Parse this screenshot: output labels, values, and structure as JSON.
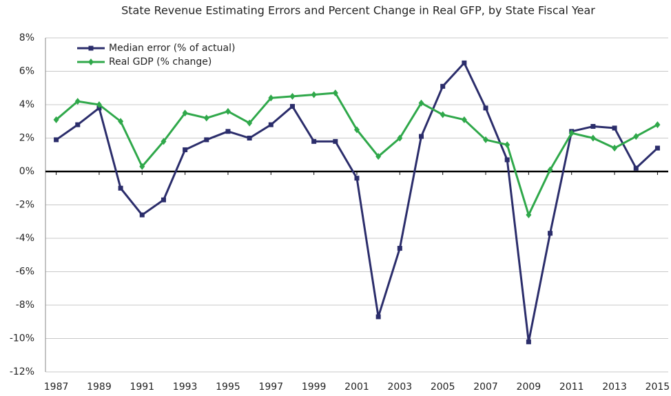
{
  "chart_data": {
    "type": "line",
    "title": "State Revenue Estimating Errors and Percent Change in Real GFP, by State Fiscal Year",
    "x": [
      1987,
      1988,
      1989,
      1990,
      1991,
      1992,
      1993,
      1994,
      1995,
      1996,
      1997,
      1998,
      1999,
      2000,
      2001,
      2002,
      2003,
      2004,
      2005,
      2006,
      2007,
      2008,
      2009,
      2010,
      2011,
      2012,
      2013,
      2014,
      2015
    ],
    "series": [
      {
        "name": "Median error (% of actual)",
        "color": "#2b2d6b",
        "marker": "square",
        "values": [
          1.9,
          2.8,
          3.8,
          -1.0,
          -2.6,
          -1.7,
          1.3,
          1.9,
          2.4,
          2.0,
          2.8,
          3.9,
          1.8,
          1.8,
          -0.4,
          -8.7,
          -4.6,
          2.1,
          5.1,
          6.5,
          3.8,
          0.7,
          -10.2,
          -3.7,
          2.4,
          2.7,
          2.6,
          0.2,
          1.4
        ]
      },
      {
        "name": "Real GDP (% change)",
        "color": "#2fa84a",
        "marker": "diamond",
        "values": [
          3.1,
          4.2,
          4.0,
          3.0,
          0.3,
          1.8,
          3.5,
          3.2,
          3.6,
          2.9,
          4.4,
          4.5,
          4.6,
          4.7,
          2.5,
          0.9,
          2.0,
          4.1,
          3.4,
          3.1,
          1.9,
          1.6,
          -2.6,
          0.1,
          2.3,
          2.0,
          1.4,
          2.1,
          2.8
        ]
      }
    ],
    "xlim": [
      1986.5,
      2015.5
    ],
    "xticks": [
      1987,
      1989,
      1991,
      1993,
      1995,
      1997,
      1999,
      2001,
      2003,
      2005,
      2007,
      2009,
      2011,
      2013,
      2015
    ],
    "ylim": [
      -12,
      8
    ],
    "yticks": [
      {
        "value": -12,
        "label": "-12%"
      },
      {
        "value": -10,
        "label": "-10%"
      },
      {
        "value": -8,
        "label": "-8%"
      },
      {
        "value": -6,
        "label": "-6%"
      },
      {
        "value": -4,
        "label": "-4%"
      },
      {
        "value": -2,
        "label": "-2%"
      },
      {
        "value": 0,
        "label": "0%"
      },
      {
        "value": 2,
        "label": "2%"
      },
      {
        "value": 4,
        "label": "4%"
      },
      {
        "value": 6,
        "label": "6%"
      },
      {
        "value": 8,
        "label": "8%"
      }
    ],
    "grid": true,
    "legend": "top-left"
  }
}
